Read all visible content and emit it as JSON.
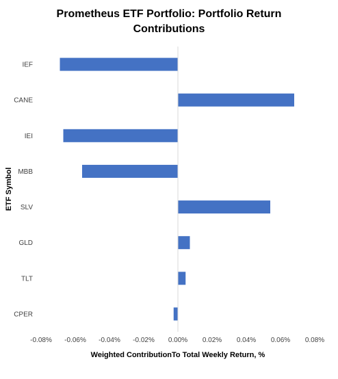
{
  "chart_data": {
    "type": "bar",
    "orientation": "horizontal",
    "title": "Prometheus ETF Portfolio: Portfolio Return Contributions",
    "xlabel": "Weighted ContributionTo Total Weekly Return, %",
    "ylabel": "ETF Symbol",
    "categories": [
      "IEF",
      "CANE",
      "IEI",
      "MBB",
      "SLV",
      "GLD",
      "TLT",
      "CPER"
    ],
    "values": [
      -0.069,
      0.068,
      -0.067,
      -0.056,
      0.054,
      0.007,
      0.0045,
      -0.0025
    ],
    "xlim": [
      -0.08,
      0.08
    ],
    "x_ticks": [
      -0.08,
      -0.06,
      -0.04,
      -0.02,
      0.0,
      0.02,
      0.04,
      0.06,
      0.08
    ],
    "x_tick_labels": [
      "-0.08%",
      "-0.06%",
      "-0.04%",
      "-0.02%",
      "0.00%",
      "0.02%",
      "0.04%",
      "0.06%",
      "0.08%"
    ],
    "grid": false,
    "legend": "none",
    "bar_color": "#4472C4"
  }
}
